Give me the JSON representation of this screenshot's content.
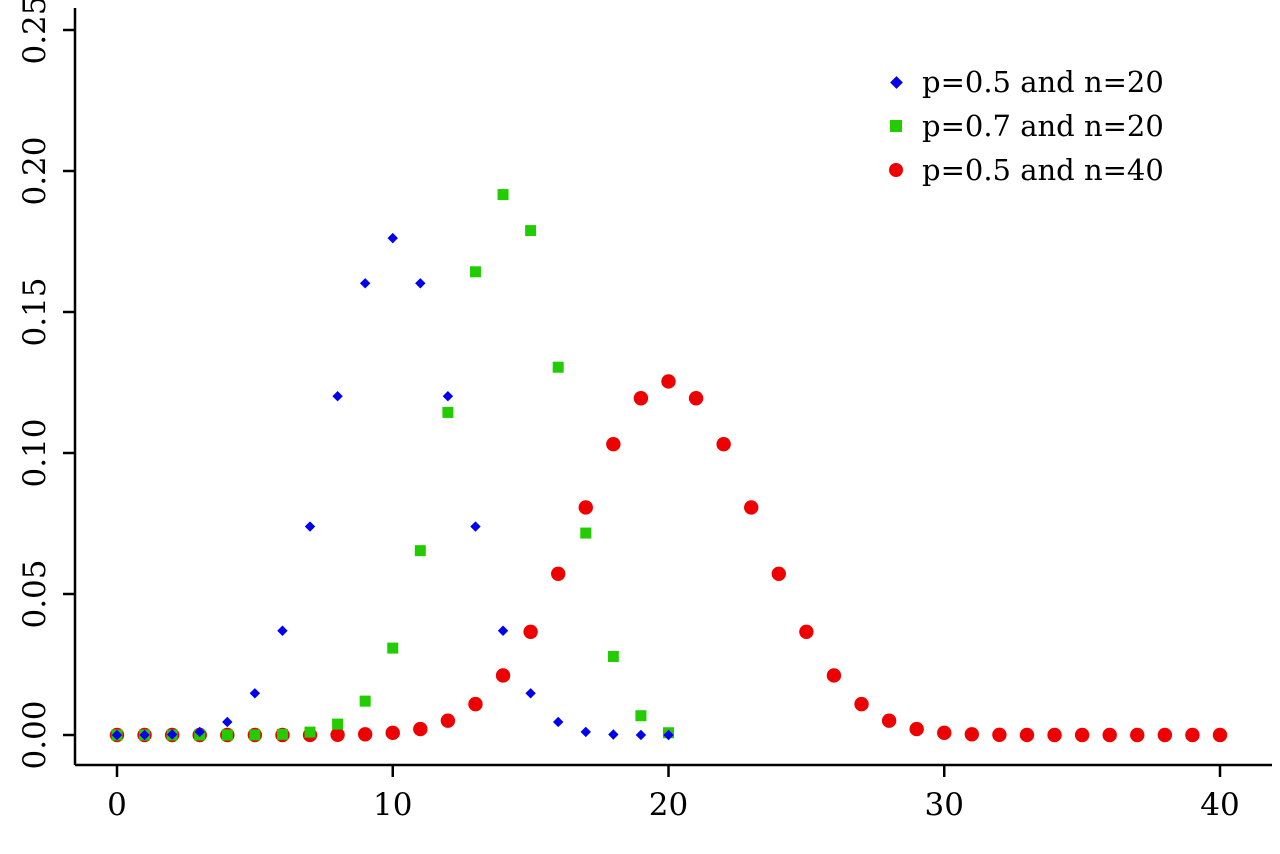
{
  "colors": {
    "background": "#ffffff",
    "axis": "#000000",
    "text": "#000000"
  },
  "chart_data": {
    "type": "scatter",
    "title": "",
    "xlabel": "",
    "ylabel": "",
    "grid": false,
    "legend_position": "top-right",
    "xlim": [
      -1.5,
      41.5
    ],
    "ylim": [
      0,
      0.26
    ],
    "x_ticks": {
      "values": [
        0,
        10,
        20,
        30,
        40
      ],
      "labels": [
        "0",
        "10",
        "20",
        "30",
        "40"
      ]
    },
    "y_ticks": {
      "values": [
        0,
        0.05,
        0.1,
        0.15,
        0.2,
        0.25
      ],
      "labels": [
        "0.00",
        "0.05",
        "0.10",
        "0.15",
        "0.20",
        "0.25"
      ]
    },
    "series": [
      {
        "name": "p=0.5 and n=20",
        "marker": "diamond",
        "color": "#0000ee",
        "x": [
          0,
          1,
          2,
          3,
          4,
          5,
          6,
          7,
          8,
          9,
          10,
          11,
          12,
          13,
          14,
          15,
          16,
          17,
          18,
          19,
          20
        ],
        "y": [
          1e-06,
          1.9e-05,
          0.000181,
          0.001087,
          0.004621,
          0.014786,
          0.036964,
          0.073929,
          0.120134,
          0.160179,
          0.176197,
          0.160179,
          0.120134,
          0.073929,
          0.036964,
          0.014786,
          0.004621,
          0.001087,
          0.000181,
          1.9e-05,
          1e-06
        ]
      },
      {
        "name": "p=0.7 and n=20",
        "marker": "square",
        "color": "#22cc00",
        "x": [
          0,
          1,
          2,
          3,
          4,
          5,
          6,
          7,
          8,
          9,
          10,
          11,
          12,
          13,
          14,
          15,
          16,
          17,
          18,
          19,
          20
        ],
        "y": [
          0,
          0,
          0,
          1e-06,
          5e-06,
          3.7e-05,
          0.000218,
          0.001018,
          0.003859,
          0.012007,
          0.030817,
          0.06537,
          0.114397,
          0.164262,
          0.191639,
          0.178863,
          0.130421,
          0.071604,
          0.027846,
          0.006839,
          0.000798
        ]
      },
      {
        "name": "p=0.5 and n=40",
        "marker": "circle",
        "color": "#ee0000",
        "x": [
          0,
          1,
          2,
          3,
          4,
          5,
          6,
          7,
          8,
          9,
          10,
          11,
          12,
          13,
          14,
          15,
          16,
          17,
          18,
          19,
          20,
          21,
          22,
          23,
          24,
          25,
          26,
          27,
          28,
          29,
          30,
          31,
          32,
          33,
          34,
          35,
          36,
          37,
          38,
          39,
          40
        ],
        "y": [
          0,
          0,
          0,
          0,
          0,
          1e-06,
          3e-06,
          1.7e-05,
          7e-05,
          0.000249,
          0.000771,
          0.002103,
          0.005081,
          0.010945,
          0.02111,
          0.036588,
          0.057166,
          0.080702,
          0.103122,
          0.119415,
          0.125371,
          0.119415,
          0.103122,
          0.080702,
          0.057166,
          0.036588,
          0.02111,
          0.010945,
          0.005081,
          0.002103,
          0.000771,
          0.000249,
          7e-05,
          1.7e-05,
          3e-06,
          1e-06,
          0,
          0,
          0,
          0,
          0
        ]
      }
    ]
  }
}
